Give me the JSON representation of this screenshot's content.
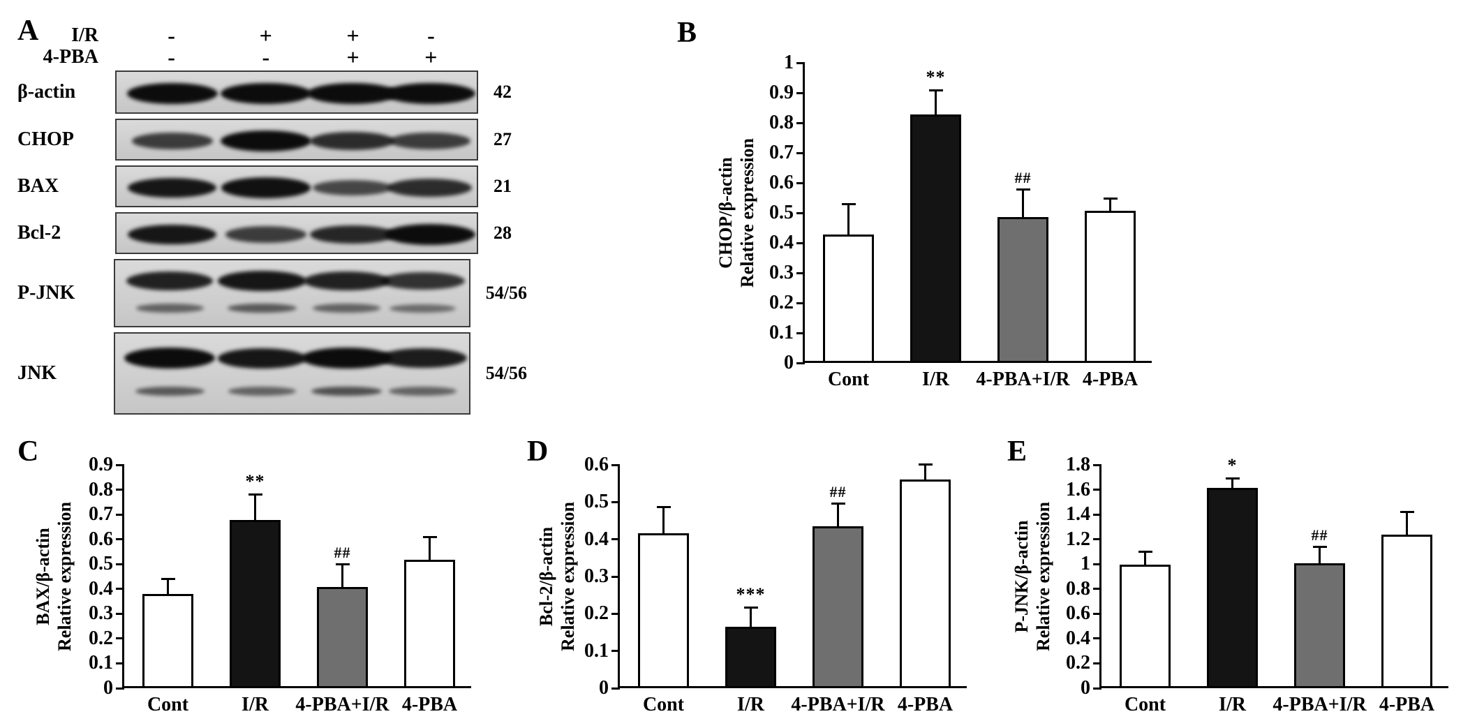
{
  "blot": {
    "panel_label": "A",
    "lane_count": 4,
    "conditions": [
      {
        "name": "I/R",
        "signs": [
          "-",
          "+",
          "+",
          "-"
        ]
      },
      {
        "name": "4-PBA",
        "signs": [
          "-",
          "-",
          "+",
          "+"
        ]
      }
    ],
    "rows": [
      {
        "label": "β-actin",
        "mw": "42",
        "bands": [
          1,
          1,
          1,
          1
        ]
      },
      {
        "label": "CHOP",
        "mw": "27",
        "bands": [
          0.55,
          1,
          0.7,
          0.55
        ]
      },
      {
        "label": "BAX",
        "mw": "21",
        "bands": [
          0.9,
          0.95,
          0.45,
          0.7
        ]
      },
      {
        "label": "Bcl-2",
        "mw": "28",
        "bands": [
          0.9,
          0.55,
          0.75,
          1
        ]
      },
      {
        "label": "P-JNK",
        "mw": "54/56",
        "bands": [
          0.8,
          0.9,
          0.8,
          0.65
        ],
        "bands2": [
          0.3,
          0.35,
          0.3,
          0.25
        ]
      },
      {
        "label": "JNK",
        "mw": "54/56",
        "bands": [
          1,
          0.9,
          1,
          0.85
        ],
        "bands2": [
          0.35,
          0.3,
          0.4,
          0.3
        ]
      }
    ]
  },
  "chart_data": [
    {
      "type": "bar",
      "panel": "B",
      "ylabel_line1": "CHOP/β-actin",
      "ylabel_line2": "Relative expression",
      "categories": [
        "Cont",
        "I/R",
        "4-PBA+I/R",
        "4-PBA"
      ],
      "values": [
        0.42,
        0.82,
        0.48,
        0.5
      ],
      "errors": [
        0.1,
        0.08,
        0.09,
        0.04
      ],
      "annotations": [
        "",
        "**",
        "##",
        ""
      ],
      "ylim": [
        0,
        1
      ],
      "ytick_step": 0.1,
      "bar_colors": [
        "#ffffff",
        "#141414",
        "#6f6f6f",
        "#ffffff"
      ],
      "grid": false
    },
    {
      "type": "bar",
      "panel": "C",
      "ylabel_line1": "BAX/β-actin",
      "ylabel_line2": "Relative expression",
      "categories": [
        "Cont",
        "I/R",
        "4-PBA+I/R",
        "4-PBA"
      ],
      "values": [
        0.37,
        0.67,
        0.4,
        0.51
      ],
      "errors": [
        0.06,
        0.1,
        0.09,
        0.09
      ],
      "annotations": [
        "",
        "**",
        "##",
        ""
      ],
      "ylim": [
        0,
        0.9
      ],
      "ytick_step": 0.1,
      "bar_colors": [
        "#ffffff",
        "#141414",
        "#6f6f6f",
        "#ffffff"
      ],
      "grid": false
    },
    {
      "type": "bar",
      "panel": "D",
      "ylabel_line1": "Bcl-2/β-actin",
      "ylabel_line2": "Relative expression",
      "categories": [
        "Cont",
        "I/R",
        "4-PBA+I/R",
        "4-PBA"
      ],
      "values": [
        0.41,
        0.16,
        0.43,
        0.555
      ],
      "errors": [
        0.07,
        0.05,
        0.06,
        0.04
      ],
      "annotations": [
        "",
        "***",
        "##",
        ""
      ],
      "ylim": [
        0,
        0.6
      ],
      "ytick_step": 0.1,
      "bar_colors": [
        "#ffffff",
        "#141414",
        "#6f6f6f",
        "#ffffff"
      ],
      "grid": false
    },
    {
      "type": "bar",
      "panel": "E",
      "ylabel_line1": "P-JNK/β-actin",
      "ylabel_line2": "Relative expression",
      "categories": [
        "Cont",
        "I/R",
        "4-PBA+I/R",
        "4-PBA"
      ],
      "values": [
        0.98,
        1.6,
        0.99,
        1.22
      ],
      "errors": [
        0.1,
        0.07,
        0.13,
        0.18
      ],
      "annotations": [
        "",
        "*",
        "##",
        ""
      ],
      "ylim": [
        0,
        1.8
      ],
      "ytick_step": 0.2,
      "bar_colors": [
        "#ffffff",
        "#141414",
        "#6f6f6f",
        "#ffffff"
      ],
      "grid": false
    }
  ]
}
